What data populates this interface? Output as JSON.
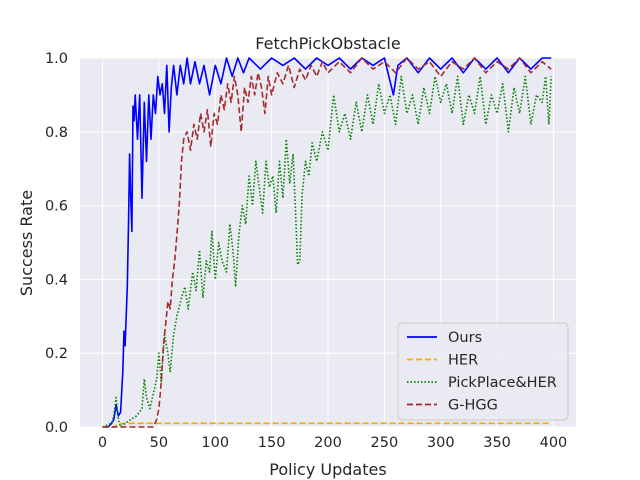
{
  "chart_data": {
    "type": "line",
    "title": "FetchPickObstacle",
    "xlabel": "Policy Updates",
    "ylabel": "Success Rate",
    "xlim": [
      -20,
      420
    ],
    "ylim": [
      0.0,
      1.0
    ],
    "xticks": [
      "0",
      "50",
      "100",
      "150",
      "200",
      "250",
      "300",
      "350",
      "400"
    ],
    "yticks": [
      "0.0",
      "0.2",
      "0.4",
      "0.6",
      "0.8",
      "1.0"
    ],
    "grid": true,
    "legend_position": "lower-right",
    "colors": {
      "background": "#eaeaf2",
      "grid": "#ffffff"
    },
    "series": [
      {
        "name": "Ours",
        "color": "#0000ff",
        "style": "solid",
        "points": [
          [
            0,
            0.0
          ],
          [
            5,
            0.0
          ],
          [
            8,
            0.01
          ],
          [
            10,
            0.02
          ],
          [
            12,
            0.06
          ],
          [
            14,
            0.03
          ],
          [
            16,
            0.04
          ],
          [
            18,
            0.15
          ],
          [
            19,
            0.26
          ],
          [
            20,
            0.22
          ],
          [
            21,
            0.3
          ],
          [
            22,
            0.38
          ],
          [
            23,
            0.55
          ],
          [
            24,
            0.74
          ],
          [
            25,
            0.62
          ],
          [
            26,
            0.53
          ],
          [
            27,
            0.87
          ],
          [
            28,
            0.83
          ],
          [
            29,
            0.9
          ],
          [
            31,
            0.78
          ],
          [
            33,
            0.9
          ],
          [
            35,
            0.62
          ],
          [
            37,
            0.88
          ],
          [
            39,
            0.72
          ],
          [
            41,
            0.9
          ],
          [
            43,
            0.78
          ],
          [
            45,
            0.9
          ],
          [
            47,
            0.85
          ],
          [
            49,
            0.95
          ],
          [
            51,
            0.9
          ],
          [
            53,
            0.93
          ],
          [
            55,
            0.85
          ],
          [
            57,
            0.98
          ],
          [
            59,
            0.8
          ],
          [
            61,
            0.92
          ],
          [
            63,
            0.98
          ],
          [
            66,
            0.9
          ],
          [
            69,
            0.98
          ],
          [
            72,
            0.93
          ],
          [
            75,
            1.0
          ],
          [
            78,
            0.93
          ],
          [
            82,
            0.99
          ],
          [
            86,
            0.93
          ],
          [
            90,
            0.98
          ],
          [
            95,
            0.9
          ],
          [
            100,
            0.98
          ],
          [
            105,
            0.93
          ],
          [
            110,
            1.0
          ],
          [
            115,
            0.95
          ],
          [
            120,
            1.0
          ],
          [
            125,
            0.96
          ],
          [
            130,
            1.0
          ],
          [
            140,
            0.97
          ],
          [
            150,
            1.0
          ],
          [
            160,
            0.98
          ],
          [
            170,
            1.0
          ],
          [
            180,
            0.97
          ],
          [
            190,
            1.0
          ],
          [
            200,
            0.98
          ],
          [
            210,
            1.0
          ],
          [
            220,
            0.97
          ],
          [
            230,
            1.0
          ],
          [
            240,
            0.98
          ],
          [
            250,
            1.0
          ],
          [
            258,
            0.9
          ],
          [
            262,
            0.98
          ],
          [
            270,
            1.0
          ],
          [
            280,
            0.96
          ],
          [
            290,
            1.0
          ],
          [
            300,
            0.97
          ],
          [
            310,
            1.0
          ],
          [
            320,
            0.96
          ],
          [
            330,
            1.0
          ],
          [
            340,
            0.97
          ],
          [
            350,
            1.0
          ],
          [
            360,
            0.96
          ],
          [
            370,
            1.0
          ],
          [
            380,
            0.97
          ],
          [
            390,
            1.0
          ],
          [
            398,
            1.0
          ]
        ]
      },
      {
        "name": "HER",
        "color": "#ffa500",
        "style": "dashed",
        "points": [
          [
            0,
            0.0
          ],
          [
            10,
            0.0
          ],
          [
            12,
            0.005
          ],
          [
            15,
            0.008
          ],
          [
            20,
            0.01
          ],
          [
            40,
            0.01
          ],
          [
            100,
            0.01
          ],
          [
            200,
            0.01
          ],
          [
            300,
            0.01
          ],
          [
            398,
            0.01
          ]
        ]
      },
      {
        "name": "PickPlace&HER",
        "color": "#008000",
        "style": "dotted",
        "points": [
          [
            0,
            0.0
          ],
          [
            8,
            0.01
          ],
          [
            10,
            0.03
          ],
          [
            12,
            0.08
          ],
          [
            14,
            0.02
          ],
          [
            16,
            0.0
          ],
          [
            20,
            0.01
          ],
          [
            25,
            0.02
          ],
          [
            30,
            0.03
          ],
          [
            35,
            0.05
          ],
          [
            37,
            0.13
          ],
          [
            39,
            0.08
          ],
          [
            42,
            0.05
          ],
          [
            45,
            0.09
          ],
          [
            48,
            0.13
          ],
          [
            50,
            0.2
          ],
          [
            52,
            0.12
          ],
          [
            55,
            0.25
          ],
          [
            58,
            0.2
          ],
          [
            60,
            0.15
          ],
          [
            63,
            0.25
          ],
          [
            66,
            0.3
          ],
          [
            70,
            0.35
          ],
          [
            73,
            0.38
          ],
          [
            76,
            0.32
          ],
          [
            80,
            0.42
          ],
          [
            83,
            0.37
          ],
          [
            86,
            0.48
          ],
          [
            89,
            0.35
          ],
          [
            92,
            0.45
          ],
          [
            95,
            0.42
          ],
          [
            97,
            0.53
          ],
          [
            100,
            0.4
          ],
          [
            103,
            0.5
          ],
          [
            106,
            0.45
          ],
          [
            110,
            0.42
          ],
          [
            113,
            0.55
          ],
          [
            116,
            0.47
          ],
          [
            118,
            0.38
          ],
          [
            121,
            0.52
          ],
          [
            124,
            0.6
          ],
          [
            127,
            0.55
          ],
          [
            130,
            0.68
          ],
          [
            133,
            0.6
          ],
          [
            136,
            0.72
          ],
          [
            139,
            0.65
          ],
          [
            142,
            0.58
          ],
          [
            145,
            0.72
          ],
          [
            148,
            0.65
          ],
          [
            151,
            0.68
          ],
          [
            154,
            0.58
          ],
          [
            157,
            0.72
          ],
          [
            160,
            0.62
          ],
          [
            163,
            0.78
          ],
          [
            166,
            0.66
          ],
          [
            169,
            0.74
          ],
          [
            171,
            0.6
          ],
          [
            173,
            0.44
          ],
          [
            175,
            0.45
          ],
          [
            177,
            0.63
          ],
          [
            180,
            0.72
          ],
          [
            183,
            0.68
          ],
          [
            186,
            0.77
          ],
          [
            190,
            0.72
          ],
          [
            195,
            0.8
          ],
          [
            200,
            0.75
          ],
          [
            205,
            0.9
          ],
          [
            210,
            0.8
          ],
          [
            215,
            0.85
          ],
          [
            220,
            0.78
          ],
          [
            225,
            0.88
          ],
          [
            230,
            0.8
          ],
          [
            235,
            0.9
          ],
          [
            240,
            0.82
          ],
          [
            245,
            0.93
          ],
          [
            250,
            0.85
          ],
          [
            255,
            0.9
          ],
          [
            260,
            0.82
          ],
          [
            265,
            0.95
          ],
          [
            270,
            0.85
          ],
          [
            275,
            0.9
          ],
          [
            280,
            0.82
          ],
          [
            285,
            0.92
          ],
          [
            290,
            0.85
          ],
          [
            295,
            0.95
          ],
          [
            300,
            0.88
          ],
          [
            305,
            0.93
          ],
          [
            310,
            0.85
          ],
          [
            315,
            0.95
          ],
          [
            320,
            0.82
          ],
          [
            325,
            0.9
          ],
          [
            330,
            0.85
          ],
          [
            335,
            0.95
          ],
          [
            340,
            0.82
          ],
          [
            345,
            0.9
          ],
          [
            350,
            0.85
          ],
          [
            355,
            0.93
          ],
          [
            360,
            0.8
          ],
          [
            365,
            0.92
          ],
          [
            370,
            0.85
          ],
          [
            375,
            0.95
          ],
          [
            380,
            0.82
          ],
          [
            385,
            0.9
          ],
          [
            390,
            0.88
          ],
          [
            393,
            0.95
          ],
          [
            396,
            0.82
          ],
          [
            398,
            0.95
          ]
        ]
      },
      {
        "name": "G-HGG",
        "color": "#a52a2a",
        "style": "dashed",
        "points": [
          [
            0,
            0.0
          ],
          [
            20,
            0.0
          ],
          [
            30,
            0.0
          ],
          [
            40,
            0.0
          ],
          [
            45,
            0.0
          ],
          [
            48,
            0.02
          ],
          [
            50,
            0.05
          ],
          [
            52,
            0.12
          ],
          [
            54,
            0.22
          ],
          [
            56,
            0.28
          ],
          [
            58,
            0.34
          ],
          [
            60,
            0.32
          ],
          [
            62,
            0.4
          ],
          [
            64,
            0.45
          ],
          [
            66,
            0.52
          ],
          [
            68,
            0.6
          ],
          [
            70,
            0.72
          ],
          [
            72,
            0.78
          ],
          [
            75,
            0.8
          ],
          [
            78,
            0.75
          ],
          [
            81,
            0.82
          ],
          [
            84,
            0.78
          ],
          [
            87,
            0.85
          ],
          [
            90,
            0.8
          ],
          [
            93,
            0.86
          ],
          [
            96,
            0.76
          ],
          [
            99,
            0.85
          ],
          [
            102,
            0.82
          ],
          [
            105,
            0.9
          ],
          [
            108,
            0.86
          ],
          [
            111,
            0.93
          ],
          [
            114,
            0.88
          ],
          [
            117,
            0.95
          ],
          [
            120,
            0.9
          ],
          [
            123,
            0.8
          ],
          [
            126,
            0.92
          ],
          [
            129,
            0.88
          ],
          [
            132,
            0.95
          ],
          [
            135,
            0.9
          ],
          [
            138,
            0.96
          ],
          [
            141,
            0.92
          ],
          [
            144,
            0.85
          ],
          [
            147,
            0.95
          ],
          [
            150,
            0.9
          ],
          [
            155,
            0.96
          ],
          [
            160,
            0.93
          ],
          [
            165,
            0.98
          ],
          [
            170,
            0.92
          ],
          [
            175,
            0.97
          ],
          [
            180,
            0.94
          ],
          [
            185,
            0.98
          ],
          [
            190,
            0.95
          ],
          [
            195,
            0.99
          ],
          [
            200,
            0.96
          ],
          [
            210,
            0.99
          ],
          [
            220,
            0.96
          ],
          [
            230,
            1.0
          ],
          [
            240,
            0.97
          ],
          [
            250,
            0.99
          ],
          [
            260,
            0.96
          ],
          [
            270,
            1.0
          ],
          [
            280,
            0.97
          ],
          [
            290,
            0.99
          ],
          [
            300,
            0.95
          ],
          [
            310,
            0.99
          ],
          [
            320,
            0.97
          ],
          [
            330,
            1.0
          ],
          [
            340,
            0.96
          ],
          [
            350,
            0.99
          ],
          [
            360,
            0.97
          ],
          [
            370,
            1.0
          ],
          [
            380,
            0.96
          ],
          [
            390,
            0.99
          ],
          [
            398,
            0.97
          ]
        ]
      }
    ]
  }
}
